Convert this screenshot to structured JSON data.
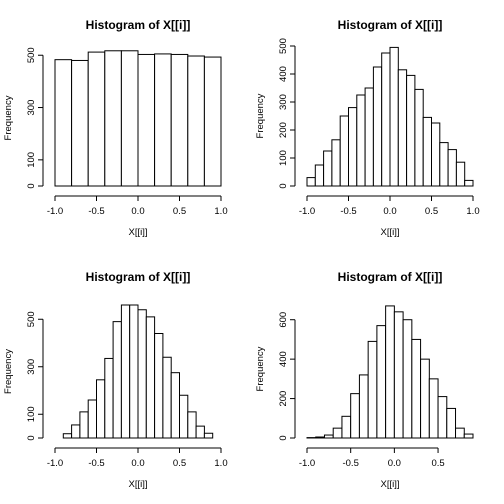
{
  "chart_data": [
    {
      "type": "bar",
      "title": "Histogram of X[[i]]",
      "xlabel": "X[[i]]",
      "ylabel": "Frequency",
      "xlim": [
        -1.0,
        1.0
      ],
      "ylim": [
        0,
        520
      ],
      "xticks": [
        -1.0,
        -0.5,
        0.0,
        0.5,
        1.0
      ],
      "xtick_labels": [
        "-1.0",
        "-0.5",
        "0.0",
        "0.5",
        "1.0"
      ],
      "yticks": [
        0,
        100,
        300,
        500
      ],
      "ytick_labels": [
        "0",
        "100",
        "300",
        "500"
      ],
      "bin_edges": [
        -1.0,
        -0.8,
        -0.6,
        -0.4,
        -0.2,
        0.0,
        0.2,
        0.4,
        0.6,
        0.8,
        1.0
      ],
      "values": [
        483,
        480,
        512,
        517,
        517,
        503,
        505,
        503,
        497,
        493
      ]
    },
    {
      "type": "bar",
      "title": "Histogram of X[[i]]",
      "xlabel": "X[[i]]",
      "ylabel": "Frequency",
      "xlim": [
        -1.0,
        1.0
      ],
      "ylim": [
        0,
        500
      ],
      "xticks": [
        -1.0,
        -0.5,
        0.0,
        0.5,
        1.0
      ],
      "xtick_labels": [
        "-1.0",
        "-0.5",
        "0.0",
        "0.5",
        "1.0"
      ],
      "yticks": [
        0,
        100,
        200,
        300,
        400,
        500
      ],
      "ytick_labels": [
        "0",
        "100",
        "200",
        "300",
        "400",
        "500"
      ],
      "bin_edges": [
        -1.0,
        -0.9,
        -0.8,
        -0.7,
        -0.6,
        -0.5,
        -0.4,
        -0.3,
        -0.2,
        -0.1,
        0.0,
        0.1,
        0.2,
        0.3,
        0.4,
        0.5,
        0.6,
        0.7,
        0.8,
        0.9,
        1.0
      ],
      "values": [
        30,
        75,
        125,
        165,
        250,
        280,
        325,
        350,
        425,
        475,
        495,
        415,
        395,
        345,
        245,
        225,
        155,
        130,
        85,
        20
      ]
    },
    {
      "type": "bar",
      "title": "Histogram of X[[i]]",
      "xlabel": "X[[i]]",
      "ylabel": "Frequency",
      "xlim": [
        -1.0,
        1.0
      ],
      "ylim": [
        0,
        560
      ],
      "xticks": [
        -1.0,
        -0.5,
        0.0,
        0.5,
        1.0
      ],
      "xtick_labels": [
        "-1.0",
        "-0.5",
        "0.0",
        "0.5",
        "1.0"
      ],
      "yticks": [
        0,
        100,
        300,
        500
      ],
      "ytick_labels": [
        "0",
        "100",
        "300",
        "500"
      ],
      "bin_edges": [
        -0.9,
        -0.8,
        -0.7,
        -0.6,
        -0.5,
        -0.4,
        -0.3,
        -0.2,
        -0.1,
        0.0,
        0.1,
        0.2,
        0.3,
        0.4,
        0.5,
        0.6,
        0.7,
        0.8,
        0.9
      ],
      "values": [
        18,
        55,
        110,
        160,
        245,
        335,
        490,
        560,
        560,
        540,
        510,
        440,
        340,
        275,
        180,
        110,
        50,
        20
      ]
    },
    {
      "type": "bar",
      "title": "Histogram of X[[i]]",
      "xlabel": "X[[i]]",
      "ylabel": "Frequency",
      "xlim": [
        -1.0,
        0.9
      ],
      "ylim": [
        0,
        700
      ],
      "xticks": [
        -1.0,
        -0.5,
        0.0,
        0.5
      ],
      "xtick_labels": [
        "-1.0",
        "-0.5",
        "0.0",
        "0.5"
      ],
      "yticks": [
        0,
        200,
        400,
        600
      ],
      "ytick_labels": [
        "0",
        "200",
        "400",
        "600"
      ],
      "bin_edges": [
        -1.0,
        -0.9,
        -0.8,
        -0.7,
        -0.6,
        -0.5,
        -0.4,
        -0.3,
        -0.2,
        -0.1,
        0.0,
        0.1,
        0.2,
        0.3,
        0.4,
        0.5,
        0.6,
        0.7,
        0.8,
        0.9
      ],
      "values": [
        2,
        5,
        15,
        50,
        110,
        225,
        320,
        490,
        570,
        670,
        640,
        600,
        500,
        400,
        300,
        210,
        150,
        50,
        20
      ]
    }
  ]
}
